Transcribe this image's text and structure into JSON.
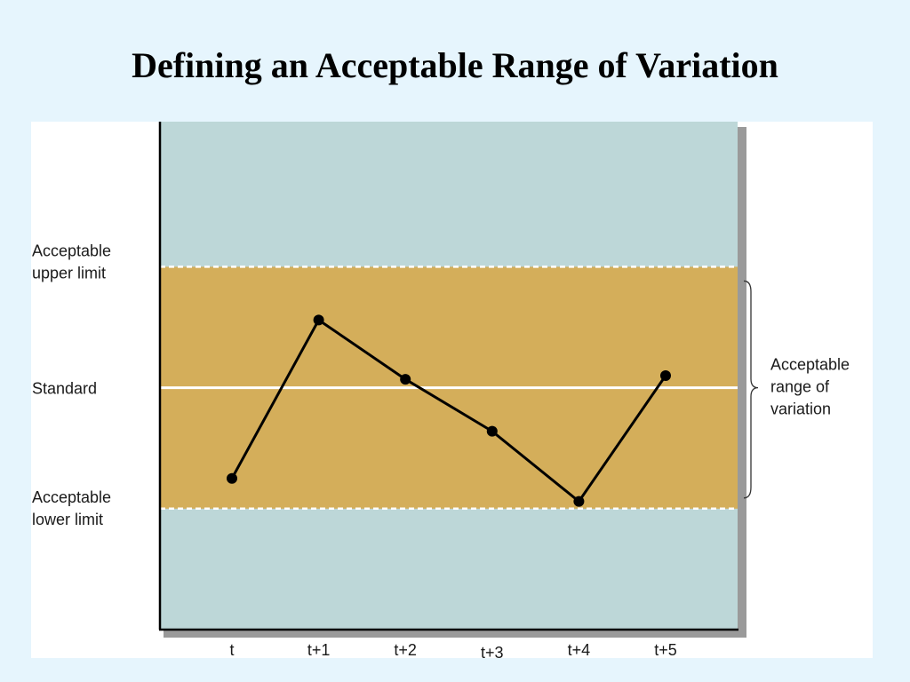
{
  "title": "Defining an Acceptable Range of Variation",
  "colors": {
    "background": "#e6f5fd",
    "outside_band": "#bdd7d8",
    "acceptable_band": "#d4ae5a",
    "line": "#000000",
    "guide_lines": "#ffffff",
    "frame_shadow": "#9a9a9a"
  },
  "chart_data": {
    "type": "line",
    "categories": [
      "t",
      "t+1",
      "t+2",
      "t+3",
      "t+4",
      "t+5"
    ],
    "values": [
      -0.75,
      0.56,
      0.07,
      -0.36,
      -0.94,
      0.1
    ],
    "ylim": [
      -2.0,
      2.2
    ],
    "reference_lines": {
      "upper": {
        "value": 1.0,
        "label": [
          "Acceptable",
          "upper limit"
        ],
        "style": "dashed"
      },
      "standard": {
        "value": 0.0,
        "label": [
          "Standard"
        ],
        "style": "solid"
      },
      "lower": {
        "value": -1.0,
        "label": [
          "Acceptable",
          "lower limit"
        ],
        "style": "dashed"
      }
    },
    "bracket_annotation": [
      "Acceptable",
      "range of",
      "variation"
    ],
    "grid": false,
    "legend": "none"
  }
}
